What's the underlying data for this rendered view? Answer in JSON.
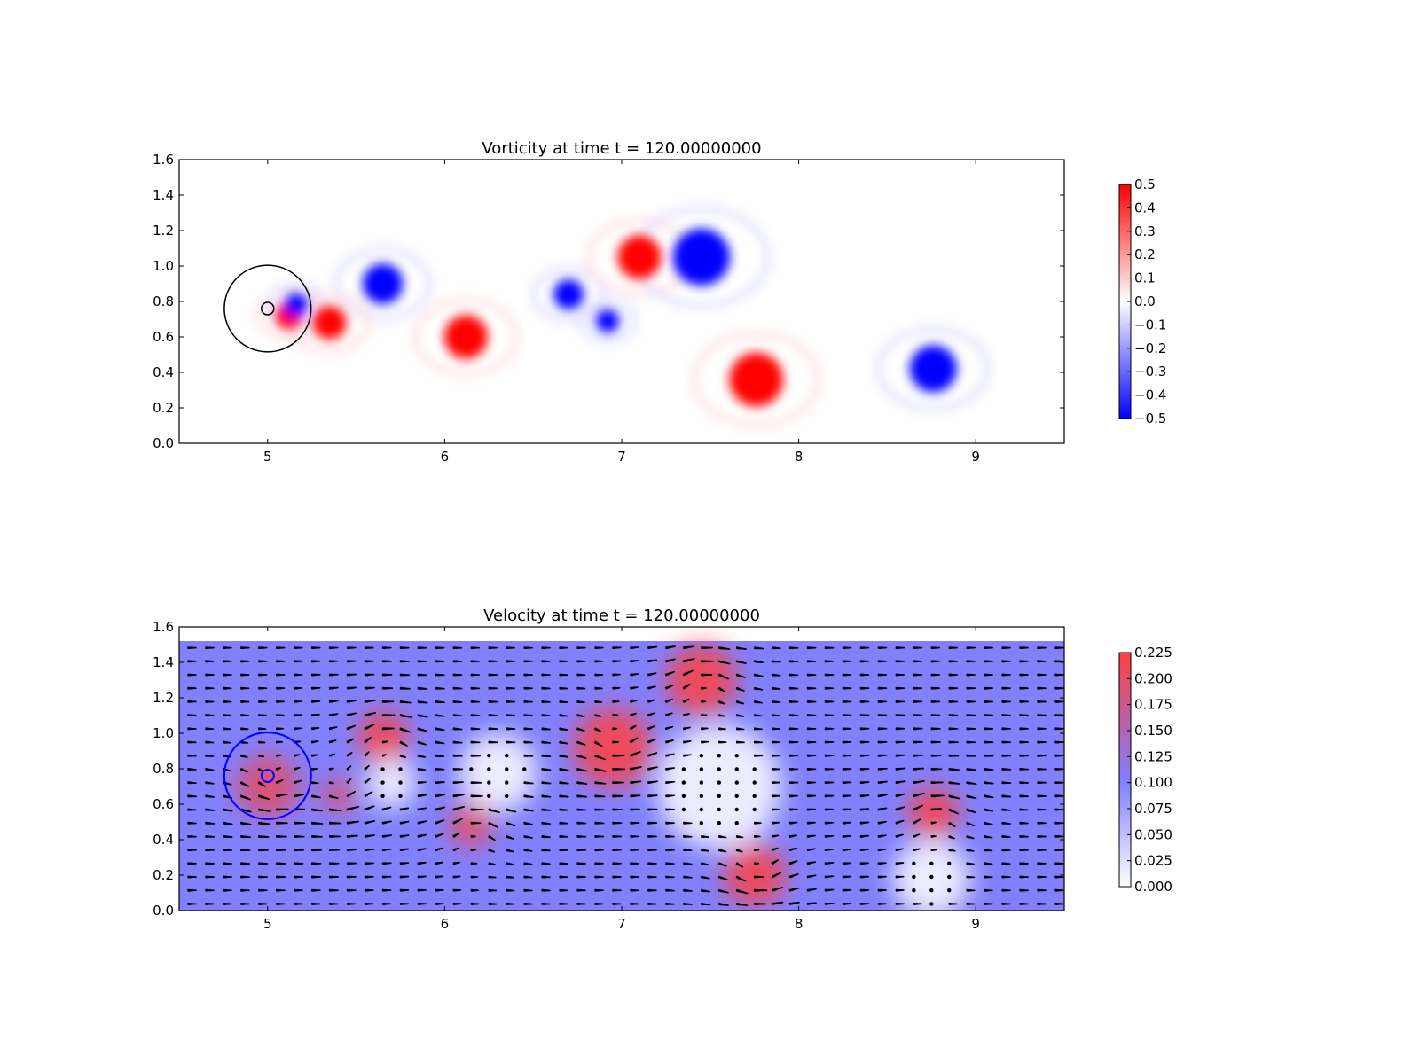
{
  "chart_data": [
    {
      "type": "heatmap",
      "title": "Vorticity at time t =   120.00000000",
      "xlabel": "",
      "ylabel": "",
      "xlim": [
        4.5,
        9.5
      ],
      "ylim": [
        0.0,
        1.6
      ],
      "x_ticks": [
        "5",
        "6",
        "7",
        "8",
        "9"
      ],
      "y_ticks": [
        "0.0",
        "0.2",
        "0.4",
        "0.6",
        "0.8",
        "1.0",
        "1.2",
        "1.4",
        "1.6"
      ],
      "grid": false,
      "colormap": {
        "low": "#0000ff",
        "mid": "#ffffff",
        "high": "#ff0000"
      },
      "colorbar": {
        "range": [
          -0.5,
          0.5
        ],
        "ticks": [
          "0.5",
          "0.4",
          "0.3",
          "0.2",
          "0.1",
          "0.0",
          "−0.1",
          "−0.2",
          "−0.3",
          "−0.4",
          "−0.5"
        ]
      },
      "vortices": [
        {
          "x": 5.65,
          "y": 0.9,
          "r": 0.12,
          "value": -0.5
        },
        {
          "x": 5.35,
          "y": 0.68,
          "r": 0.1,
          "value": 0.5
        },
        {
          "x": 5.12,
          "y": 0.72,
          "r": 0.08,
          "value": 0.5
        },
        {
          "x": 5.16,
          "y": 0.78,
          "r": 0.07,
          "value": -0.5
        },
        {
          "x": 6.12,
          "y": 0.6,
          "r": 0.13,
          "value": 0.5
        },
        {
          "x": 6.7,
          "y": 0.84,
          "r": 0.09,
          "value": -0.5
        },
        {
          "x": 7.1,
          "y": 1.05,
          "r": 0.13,
          "value": 0.5
        },
        {
          "x": 7.45,
          "y": 1.05,
          "r": 0.17,
          "value": -0.5
        },
        {
          "x": 6.92,
          "y": 0.69,
          "r": 0.07,
          "value": -0.5
        },
        {
          "x": 7.76,
          "y": 0.36,
          "r": 0.16,
          "value": 0.5
        },
        {
          "x": 8.76,
          "y": 0.42,
          "r": 0.14,
          "value": -0.5
        }
      ],
      "circles": [
        {
          "cx": 5.0,
          "cy": 0.76,
          "r": 0.35,
          "color": "#000000"
        },
        {
          "cx": 5.0,
          "cy": 0.76,
          "r": 0.05,
          "color": "#000000"
        }
      ]
    },
    {
      "type": "heatmap",
      "title": "Velocity at time t =   120.00000000",
      "xlabel": "",
      "ylabel": "",
      "xlim": [
        4.5,
        9.5
      ],
      "ylim": [
        0.0,
        1.6
      ],
      "x_ticks": [
        "5",
        "6",
        "7",
        "8",
        "9"
      ],
      "y_ticks": [
        "0.0",
        "0.2",
        "0.4",
        "0.6",
        "0.8",
        "1.0",
        "1.2",
        "1.4",
        "1.6"
      ],
      "grid": false,
      "data_ylim": [
        0.0,
        1.52
      ],
      "background_speed": 0.1,
      "colormap": {
        "low": "#ffffff",
        "mid": "#7f7fff",
        "high": "#ff4040"
      },
      "colorbar": {
        "range": [
          0.0,
          0.225
        ],
        "ticks": [
          "0.225",
          "0.200",
          "0.175",
          "0.150",
          "0.125",
          "0.100",
          "0.075",
          "0.050",
          "0.025",
          "0.000"
        ]
      },
      "fast_regions": [
        {
          "x": 5.0,
          "y": 0.7,
          "r": 0.22,
          "speed": 0.2
        },
        {
          "x": 5.65,
          "y": 0.98,
          "r": 0.18,
          "speed": 0.22
        },
        {
          "x": 5.4,
          "y": 0.65,
          "r": 0.12,
          "speed": 0.2
        },
        {
          "x": 6.15,
          "y": 0.48,
          "r": 0.16,
          "speed": 0.2
        },
        {
          "x": 6.95,
          "y": 0.92,
          "r": 0.28,
          "speed": 0.22
        },
        {
          "x": 7.45,
          "y": 1.3,
          "r": 0.25,
          "speed": 0.22
        },
        {
          "x": 7.75,
          "y": 0.2,
          "r": 0.22,
          "speed": 0.22
        },
        {
          "x": 8.76,
          "y": 0.55,
          "r": 0.18,
          "speed": 0.22
        }
      ],
      "slow_regions": [
        {
          "x": 6.3,
          "y": 0.78,
          "r": 0.22
        },
        {
          "x": 7.55,
          "y": 0.7,
          "r": 0.35
        },
        {
          "x": 8.75,
          "y": 0.18,
          "r": 0.22
        },
        {
          "x": 5.7,
          "y": 0.72,
          "r": 0.14
        }
      ],
      "circles": [
        {
          "cx": 5.0,
          "cy": 0.76,
          "r": 0.35,
          "color": "#0000ff"
        },
        {
          "cx": 5.0,
          "cy": 0.76,
          "r": 0.05,
          "color": "#0000ff"
        }
      ]
    }
  ]
}
